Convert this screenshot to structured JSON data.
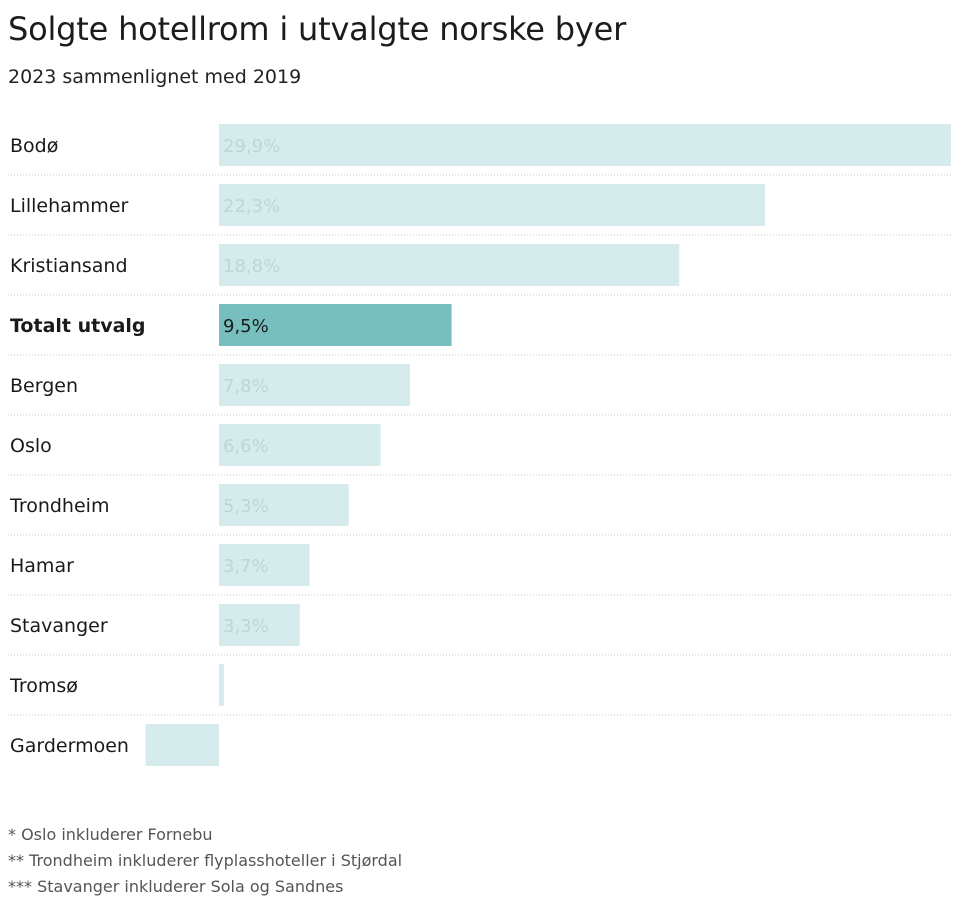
{
  "title": "Solgte hotellrom i utvalgte norske byer",
  "subtitle": "2023 sammenlignet med 2019",
  "chart_data": {
    "type": "bar",
    "orientation": "horizontal",
    "title": "Solgte hotellrom i utvalgte norske byer",
    "subtitle": "2023 sammenlignet med 2019",
    "categories": [
      "Bodø",
      "Lillehammer",
      "Kristiansand",
      "Totalt utvalg",
      "Bergen",
      "Oslo",
      "Trondheim",
      "Hamar",
      "Stavanger",
      "Tromsø",
      "Gardermoen"
    ],
    "values": [
      29.9,
      22.3,
      18.8,
      9.5,
      7.8,
      6.6,
      5.3,
      3.7,
      3.3,
      0.2,
      -3.0
    ],
    "labels": [
      "29,9%",
      "22,3%",
      "18,8%",
      "9,5%",
      "7,8%",
      "6,6%",
      "5,3%",
      "3,7%",
      "3,3%",
      "",
      ""
    ],
    "highlight": "Totalt utvalg",
    "colors": {
      "bar": "#d5ebec",
      "highlight": "#76bfbe",
      "label": "#bfd6d7",
      "highlight_label": "#1a1a1a",
      "separator": "#c8c8c8"
    },
    "xlim": [
      -3.0,
      29.9
    ],
    "grid": false,
    "legend": "none"
  },
  "notes": [
    "* Oslo inkluderer Fornebu",
    "** Trondheim inkluderer flyplasshoteller i Stjørdal",
    "*** Stavanger inkluderer Sola og Sandnes"
  ]
}
